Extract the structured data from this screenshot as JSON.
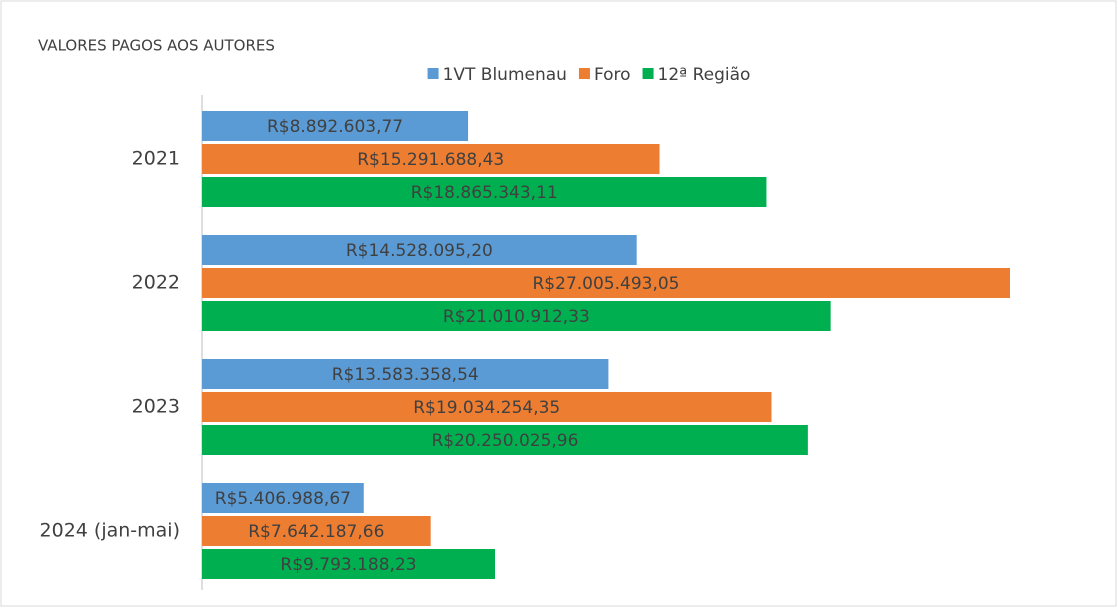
{
  "chart_data": {
    "type": "bar",
    "orientation": "horizontal",
    "title": "VALORES PAGOS AOS AUTORES",
    "categories": [
      "2021",
      "2022",
      "2023",
      "2024 (jan-mai)"
    ],
    "series": [
      {
        "name": "1VT Blumenau",
        "color": "#5b9bd5",
        "values": [
          8892603.77,
          14528095.2,
          13583358.54,
          5406988.67
        ],
        "value_labels": [
          "R$8.892.603,77",
          "R$14.528.095,20",
          "R$13.583.358,54",
          "R$5.406.988,67"
        ]
      },
      {
        "name": "Foro",
        "color": "#ed7d31",
        "values": [
          15291688.43,
          27005493.05,
          19034254.35,
          7642187.66
        ],
        "value_labels": [
          "R$15.291.688,43",
          "R$27.005.493,05",
          "R$19.034.254,35",
          "R$7.642.187,66"
        ]
      },
      {
        "name": "12ª Região",
        "color": "#00b050",
        "values": [
          18865343.11,
          21010912.33,
          20250025.96,
          9793188.23
        ],
        "value_labels": [
          "R$18.865.343,11",
          "R$21.010.912,33",
          "R$20.250.025,96",
          "R$9.793.188,23"
        ]
      }
    ],
    "legend": "top"
  }
}
